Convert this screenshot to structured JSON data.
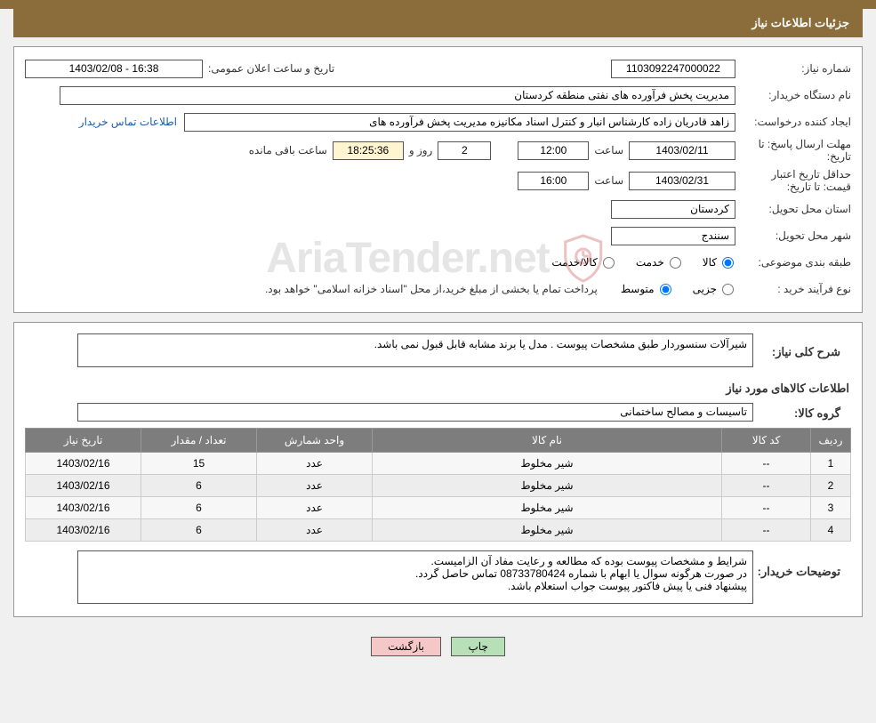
{
  "header": {
    "title": "جزئیات اطلاعات نیاز"
  },
  "info": {
    "need_no_label": "شماره نیاز:",
    "need_no": "1103092247000022",
    "announce_label": "تاریخ و ساعت اعلان عمومی:",
    "announce": "1403/02/08 - 16:38",
    "buyer_label": "نام دستگاه خریدار:",
    "buyer": "مدیریت پخش فرآورده های نفتی منطقه کردستان",
    "requester_label": "ایجاد کننده درخواست:",
    "requester": "زاهد قادریان زاده کارشناس انبار و کنترل اسناد مکانیزه مدیریت پخش فرآورده های",
    "contact_link": "اطلاعات تماس خریدار",
    "deadline_label": "مهلت ارسال پاسخ: تا تاریخ:",
    "deadline_date": "1403/02/11",
    "time_label": "ساعت",
    "deadline_time": "12:00",
    "days_left": "2",
    "days_and": "روز و",
    "countdown_time": "18:25:36",
    "remain_label": "ساعت باقی مانده",
    "validity_label": "حداقل تاریخ اعتبار قیمت: تا تاریخ:",
    "validity_date": "1403/02/31",
    "validity_time": "16:00",
    "province_label": "استان محل تحویل:",
    "province": "کردستان",
    "city_label": "شهر محل تحویل:",
    "city": "سنندج",
    "class_label": "طبقه بندی موضوعی:",
    "class_goods": "کالا",
    "class_service": "خدمت",
    "class_both": "کالا/خدمت",
    "process_label": "نوع فرآیند خرید :",
    "process_partial": "جزیی",
    "process_medium": "متوسط",
    "pay_note": "پرداخت تمام یا بخشی از مبلغ خرید،از محل \"اسناد خزانه اسلامی\" خواهد بود."
  },
  "desc": {
    "title_label": "شرح کلی نیاز:",
    "title_text": "شیرآلات سنسوردار طبق مشخصات پیوست . مدل یا برند مشابه قابل قبول نمی باشد.",
    "items_header": "اطلاعات کالاهای مورد نیاز",
    "group_label": "گروه کالا:",
    "group_value": "تاسیسات و مصالح ساختمانی"
  },
  "table": {
    "columns": [
      "ردیف",
      "کد کالا",
      "نام کالا",
      "واحد شمارش",
      "تعداد / مقدار",
      "تاریخ نیاز"
    ],
    "rows": [
      [
        "1",
        "--",
        "شیر مخلوط",
        "عدد",
        "15",
        "1403/02/16"
      ],
      [
        "2",
        "--",
        "شیر مخلوط",
        "عدد",
        "6",
        "1403/02/16"
      ],
      [
        "3",
        "--",
        "شیر مخلوط",
        "عدد",
        "6",
        "1403/02/16"
      ],
      [
        "4",
        "--",
        "شیر مخلوط",
        "عدد",
        "6",
        "1403/02/16"
      ]
    ]
  },
  "notes": {
    "label": "توضیحات خریدار:",
    "text": "شرایط و مشخصات پیوست بوده که مطالعه و رعایت مفاد آن الزامیست.\nدر صورت هرگونه سوال یا ابهام با شماره 08733780424 تماس حاصل گردد.\nپیشنهاد فنی یا پیش فاکتور پیوست جواب استعلام باشد."
  },
  "buttons": {
    "print": "چاپ",
    "back": "بازگشت"
  },
  "watermark": "AriaTender.net",
  "colors": {
    "header_bg": "#8a6d3b",
    "table_header_bg": "#7d7d7d",
    "btn_green": "#b8e0b8",
    "btn_pink": "#f5c8c8"
  }
}
